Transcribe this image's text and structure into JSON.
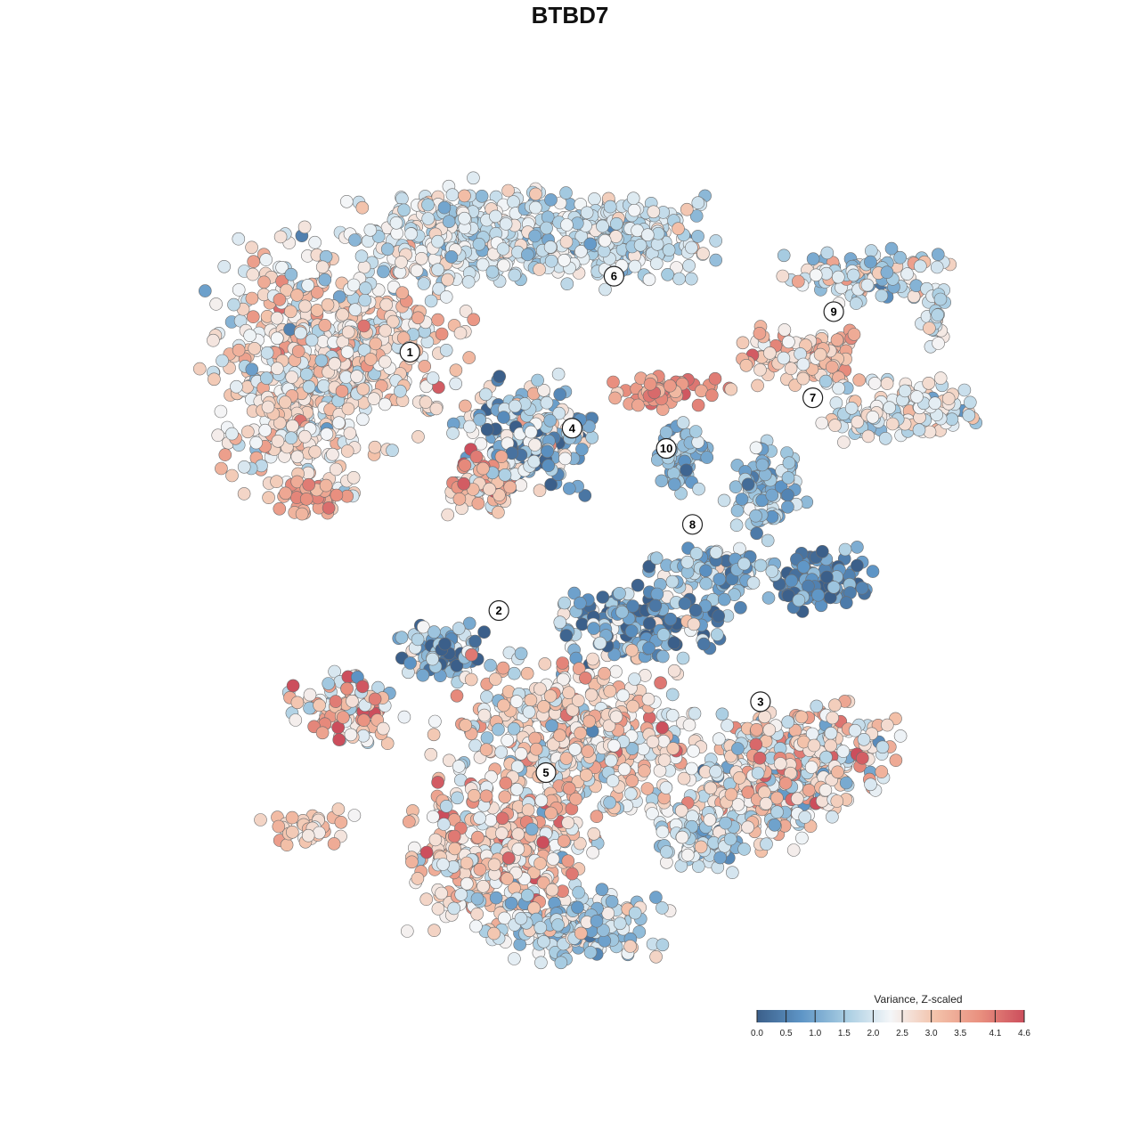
{
  "chart_data": {
    "type": "scatter",
    "title": "BTBD7",
    "description_note": "",
    "color_scale": {
      "title": "Variance, Z-scaled",
      "min": 0.0,
      "max": 4.6,
      "ticks": [
        0.0,
        0.5,
        1.0,
        1.5,
        2.0,
        2.5,
        3.0,
        3.5,
        4.1,
        4.6
      ],
      "tick_labels": [
        "0.0",
        "0.5",
        "1.0",
        "1.5",
        "2.0",
        "2.5",
        "3.0",
        "3.5",
        "4.1",
        "4.6"
      ],
      "colors": [
        "#3b5f8a",
        "#5e95c6",
        "#a8cde2",
        "#f4f6f8",
        "#f3c2aa",
        "#e9907f",
        "#cc4e5c"
      ]
    },
    "x_range": [
      -40,
      40
    ],
    "y_range": [
      -40,
      40
    ],
    "clusters": [
      {
        "label": "1",
        "x": -17.0,
        "y": 21.5,
        "value": 2.7
      },
      {
        "label": "2",
        "x": -8.5,
        "y": -4.0,
        "value": 1.3
      },
      {
        "label": "3",
        "x": 16.5,
        "y": -13.0,
        "value": 2.7
      },
      {
        "label": "4",
        "x": -1.5,
        "y": 14.0,
        "value": 1.4
      },
      {
        "label": "5",
        "x": -4.0,
        "y": -20.0,
        "value": 2.4
      },
      {
        "label": "6",
        "x": 2.5,
        "y": 29.0,
        "value": 1.9
      },
      {
        "label": "7",
        "x": 21.5,
        "y": 17.0,
        "value": 2.6
      },
      {
        "label": "8",
        "x": 10.0,
        "y": 4.5,
        "value": 0.9
      },
      {
        "label": "9",
        "x": 23.5,
        "y": 25.5,
        "value": 2.2
      },
      {
        "label": "10",
        "x": 7.5,
        "y": 12.0,
        "value": 1.2
      }
    ]
  }
}
